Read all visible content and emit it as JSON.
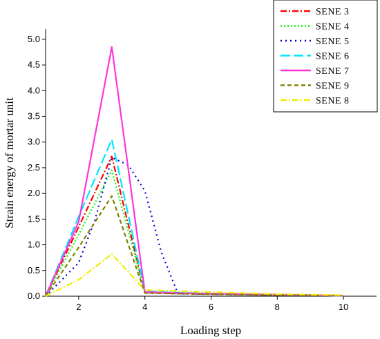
{
  "chart_data": {
    "type": "line",
    "xlabel": "Loading step",
    "ylabel": "Strain energy of mortar unit",
    "xlim": [
      1,
      11
    ],
    "ylim": [
      0,
      5.2
    ],
    "x_ticks": [
      2,
      4,
      6,
      8,
      10
    ],
    "y_ticks": [
      0.0,
      0.5,
      1.0,
      1.5,
      2.0,
      2.5,
      3.0,
      3.5,
      4.0,
      4.5,
      5.0
    ],
    "y_tick_labels": [
      "0.0",
      "0.5",
      "1.0",
      "1.5",
      "2.0",
      "2.5",
      "3.0",
      "3.5",
      "4.0",
      "4.5",
      "5.0"
    ],
    "x_tick_labels": [
      "2",
      "4",
      "6",
      "8",
      "10"
    ],
    "legend_position": "top-right",
    "series": [
      {
        "name": "SENE  3",
        "color": "#ff0000",
        "dash": "dash-dot",
        "x": [
          1,
          2,
          3,
          4,
          5,
          6,
          7,
          8,
          9,
          10
        ],
        "y": [
          0,
          1.35,
          2.72,
          0.07,
          0.05,
          0.04,
          0.03,
          0.02,
          0.02,
          0.01
        ]
      },
      {
        "name": "SENE  4",
        "color": "#00ff00",
        "dash": "dot",
        "x": [
          1,
          2,
          3,
          4,
          5,
          6,
          7,
          8,
          9,
          10
        ],
        "y": [
          0,
          1.2,
          2.45,
          0.08,
          0.06,
          0.04,
          0.03,
          0.02,
          0.02,
          0.01
        ]
      },
      {
        "name": "SENE  5",
        "color": "#0000cc",
        "dash": "short-dot",
        "x": [
          1,
          2,
          2.5,
          3,
          3.5,
          4,
          4.5,
          5,
          6,
          7,
          8,
          9,
          10
        ],
        "y": [
          0,
          0.65,
          1.5,
          2.7,
          2.55,
          2.05,
          0.85,
          0.05,
          0.04,
          0.03,
          0.02,
          0.02,
          0.01
        ]
      },
      {
        "name": "SENE  6",
        "color": "#00e5ff",
        "dash": "long-dash",
        "x": [
          1,
          2,
          3,
          4,
          5,
          6,
          7,
          8,
          9,
          10
        ],
        "y": [
          0,
          1.55,
          3.05,
          0.1,
          0.07,
          0.05,
          0.04,
          0.03,
          0.02,
          0.01
        ]
      },
      {
        "name": "SENE  7",
        "color": "#ff33dd",
        "dash": "solid",
        "x": [
          1,
          2,
          3,
          4,
          5,
          6,
          7,
          8,
          9,
          10
        ],
        "y": [
          0,
          1.45,
          4.85,
          0.08,
          0.06,
          0.05,
          0.04,
          0.03,
          0.02,
          0.01
        ]
      },
      {
        "name": "SENE  9",
        "color": "#808000",
        "dash": "dash",
        "x": [
          1,
          2,
          3,
          4,
          5,
          6,
          7,
          8,
          9,
          10
        ],
        "y": [
          0,
          0.95,
          1.95,
          0.06,
          0.05,
          0.04,
          0.03,
          0.02,
          0.02,
          0.01
        ]
      },
      {
        "name": "SENE  8",
        "color": "#eeee00",
        "dash": "dash-dot",
        "x": [
          1,
          2,
          3,
          4,
          5,
          6,
          7,
          8,
          9,
          10
        ],
        "y": [
          0,
          0.32,
          0.82,
          0.12,
          0.1,
          0.08,
          0.06,
          0.04,
          0.03,
          0.02
        ]
      }
    ]
  }
}
